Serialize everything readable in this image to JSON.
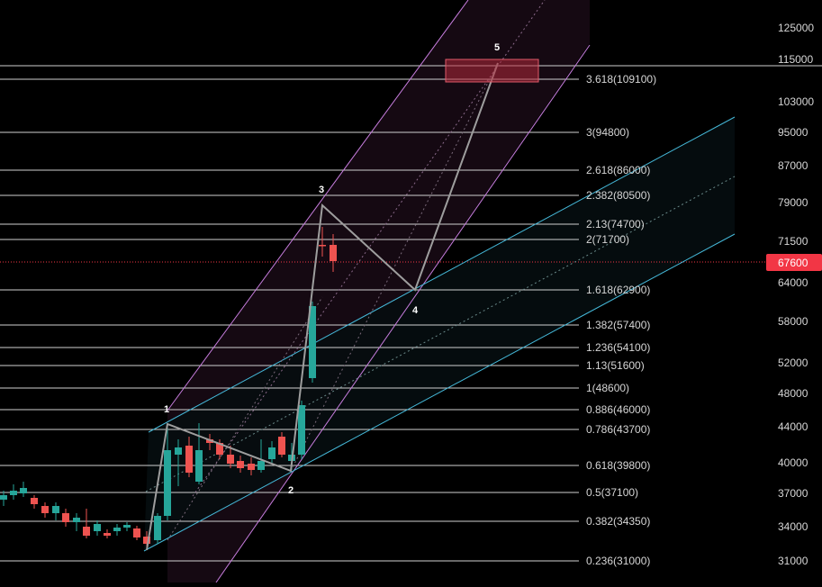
{
  "price_axis": {
    "ticks": [
      "125000",
      "115000",
      "103000",
      "95000",
      "87000",
      "79000",
      "71500",
      "64000",
      "58000",
      "52000",
      "48000",
      "44000",
      "40000",
      "37000",
      "34000",
      "31000"
    ]
  },
  "current_price": {
    "label": "67600",
    "value": 67600,
    "color": "#f23645"
  },
  "fib_levels": [
    {
      "label": "3.618(109100)",
      "value": 109100
    },
    {
      "label": "3(94800)",
      "value": 94800
    },
    {
      "label": "2.618(86000)",
      "value": 86000
    },
    {
      "label": "2.382(80500)",
      "value": 80500
    },
    {
      "label": "2.13(74700)",
      "value": 74700
    },
    {
      "label": "2(71700)",
      "value": 71700
    },
    {
      "label": "1.618(62900)",
      "value": 62900
    },
    {
      "label": "1.382(57400)",
      "value": 57400
    },
    {
      "label": "1.236(54100)",
      "value": 54100
    },
    {
      "label": "1.13(51600)",
      "value": 51600
    },
    {
      "label": "1(48600)",
      "value": 48600
    },
    {
      "label": "0.886(46000)",
      "value": 46000
    },
    {
      "label": "0.786(43700)",
      "value": 43700
    },
    {
      "label": "0.618(39800)",
      "value": 39800
    },
    {
      "label": "0.5(37100)",
      "value": 37100
    },
    {
      "label": "0.382(34350)",
      "value": 34350
    },
    {
      "label": "0.236(31000)",
      "value": 31000
    }
  ],
  "waves": {
    "labels": [
      "1",
      "2",
      "3",
      "4",
      "5"
    ]
  },
  "colors": {
    "bull": "#26a69a",
    "bear": "#ef5350",
    "wave_line": "#9e9e9e",
    "channel_pink": "#c77dde",
    "channel_cyan": "#45b8d8",
    "target_box": "#b2283a"
  }
}
